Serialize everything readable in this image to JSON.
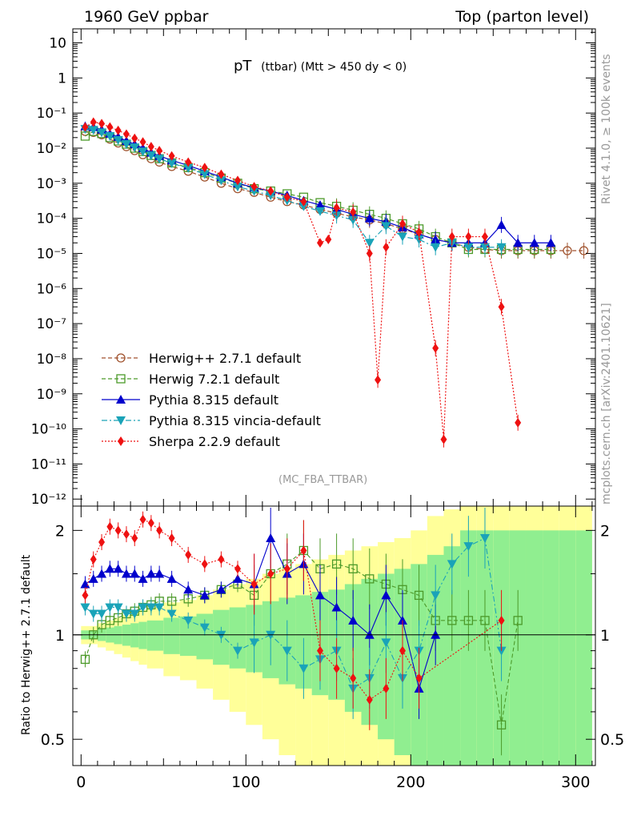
{
  "header": {
    "left": "1960 GeV ppbar",
    "right": "Top (parton level)"
  },
  "side": {
    "rivet": "Rivet 4.1.0, ≥ 100k events",
    "mcplots": "mcplots.cern.ch [arXiv:2401.10621]"
  },
  "analysis_tag": "(MC_FBA_TTBAR)",
  "title": {
    "main": "pT",
    "sub": "(ttbar) (Mtt > 450 dy < 0)"
  },
  "colors": {
    "herwigpp": "#a0522d",
    "herwig7": "#4c9a2a",
    "pythia": "#0000cc",
    "vincia": "#1aa3b8",
    "sherpa": "#ee1111",
    "band_inner": "#90ee90",
    "band_outer": "#ffff99"
  },
  "chart_data": {
    "type": "line",
    "xlabel": "",
    "xlim": [
      -5,
      312
    ],
    "x_ticks": [
      "0",
      "100",
      "200",
      "300"
    ],
    "main": {
      "yscale": "log",
      "ylim_exp": [
        -12.2,
        1.4
      ],
      "y_ticks": [
        "10",
        "1",
        "10⁻¹",
        "10⁻²",
        "10⁻³",
        "10⁻⁴",
        "10⁻⁵",
        "10⁻⁶",
        "10⁻⁷",
        "10⁻⁸",
        "10⁻⁹",
        "10⁻¹⁰",
        "10⁻¹¹",
        "10⁻¹²"
      ]
    },
    "ratio": {
      "ylabel": "Ratio to Herwig++ 2.7.1 default",
      "ylim": [
        0.42,
        2.35
      ],
      "y_ticks": [
        "0.5",
        "1",
        "2"
      ]
    },
    "series": [
      {
        "name": "Herwig++ 2.7.1 default",
        "key": "herwigpp",
        "marker": "circle",
        "x": [
          2.5,
          7.5,
          12.5,
          17.5,
          22.5,
          27.5,
          32.5,
          37.5,
          42.5,
          47.5,
          55,
          65,
          75,
          85,
          95,
          105,
          115,
          125,
          135,
          145,
          155,
          165,
          175,
          185,
          195,
          205,
          215,
          225,
          235,
          245,
          255,
          265,
          275,
          285,
          295,
          305
        ],
        "y": [
          0.03,
          0.028,
          0.024,
          0.018,
          0.014,
          0.011,
          0.0085,
          0.0065,
          0.005,
          0.004,
          0.003,
          0.0022,
          0.0015,
          0.001,
          0.0007,
          0.00055,
          0.0004,
          0.0003,
          0.00024,
          0.00018,
          0.00014,
          0.00011,
          9e-05,
          7e-05,
          5e-05,
          3.5e-05,
          2.5e-05,
          2e-05,
          1.5e-05,
          1.3e-05,
          1.2e-05,
          1.2e-05,
          1.2e-05,
          1.2e-05,
          1.2e-05,
          1.2e-05
        ]
      },
      {
        "name": "Herwig 7.2.1 default",
        "key": "herwig7",
        "marker": "square",
        "x": [
          2.5,
          7.5,
          12.5,
          17.5,
          22.5,
          27.5,
          32.5,
          37.5,
          42.5,
          47.5,
          55,
          65,
          75,
          85,
          95,
          105,
          115,
          125,
          135,
          145,
          155,
          165,
          175,
          185,
          195,
          205,
          215,
          225,
          235,
          245,
          255,
          265,
          275,
          285
        ],
        "y": [
          0.022,
          0.03,
          0.026,
          0.02,
          0.016,
          0.013,
          0.01,
          0.008,
          0.0062,
          0.005,
          0.0038,
          0.0028,
          0.002,
          0.0014,
          0.001,
          0.0007,
          0.0006,
          0.0005,
          0.0004,
          0.00028,
          0.00022,
          0.00017,
          0.00013,
          0.0001,
          7e-05,
          5e-05,
          3e-05,
          2e-05,
          1.3e-05,
          1.3e-05,
          1.3e-05,
          1.3e-05,
          1.3e-05,
          1.3e-05
        ]
      },
      {
        "name": "Pythia 8.315 default",
        "key": "pythia",
        "marker": "triangle-up",
        "x": [
          2.5,
          7.5,
          12.5,
          17.5,
          22.5,
          27.5,
          32.5,
          37.5,
          42.5,
          47.5,
          55,
          65,
          75,
          85,
          95,
          105,
          115,
          125,
          135,
          145,
          155,
          165,
          175,
          185,
          195,
          205,
          215,
          225,
          235,
          245,
          255,
          265,
          275,
          285
        ],
        "y": [
          0.042,
          0.04,
          0.034,
          0.026,
          0.021,
          0.016,
          0.013,
          0.01,
          0.0075,
          0.006,
          0.0045,
          0.0032,
          0.0022,
          0.0015,
          0.001,
          0.00075,
          0.0006,
          0.00045,
          0.00032,
          0.00024,
          0.00018,
          0.00013,
          0.0001,
          8e-05,
          5.5e-05,
          3.5e-05,
          2.5e-05,
          2e-05,
          2e-05,
          2e-05,
          6.5e-05,
          2e-05,
          2e-05,
          2e-05
        ]
      },
      {
        "name": "Pythia 8.315 vincia-default",
        "key": "vincia",
        "marker": "triangle-down",
        "x": [
          2.5,
          7.5,
          12.5,
          17.5,
          22.5,
          27.5,
          32.5,
          37.5,
          42.5,
          47.5,
          55,
          65,
          75,
          85,
          95,
          105,
          115,
          125,
          135,
          145,
          155,
          165,
          175,
          185,
          195,
          205,
          215,
          225,
          235,
          245,
          255
        ],
        "y": [
          0.035,
          0.033,
          0.028,
          0.022,
          0.017,
          0.013,
          0.0105,
          0.008,
          0.0062,
          0.005,
          0.0037,
          0.0027,
          0.0018,
          0.0012,
          0.0008,
          0.0006,
          0.00045,
          0.00032,
          0.00022,
          0.00016,
          0.00012,
          9e-05,
          2e-05,
          6e-05,
          3e-05,
          2.5e-05,
          1.5e-05,
          2e-05,
          1.5e-05,
          1.5e-05,
          1.5e-05
        ]
      },
      {
        "name": "Sherpa 2.2.9 default",
        "key": "sherpa",
        "marker": "diamond",
        "x": [
          2.5,
          7.5,
          12.5,
          17.5,
          22.5,
          27.5,
          32.5,
          37.5,
          42.5,
          47.5,
          55,
          65,
          75,
          85,
          95,
          105,
          115,
          125,
          135,
          145,
          150,
          155,
          165,
          175,
          180,
          185,
          195,
          205,
          215,
          220,
          225,
          235,
          245,
          255,
          265
        ],
        "y": [
          0.04,
          0.055,
          0.05,
          0.04,
          0.032,
          0.025,
          0.019,
          0.015,
          0.011,
          0.0085,
          0.006,
          0.004,
          0.0028,
          0.0018,
          0.0012,
          0.0008,
          0.0006,
          0.0004,
          0.0003,
          2e-05,
          2.5e-05,
          0.0002,
          0.00015,
          1e-05,
          2.5e-09,
          1.5e-05,
          7e-05,
          4e-05,
          2e-08,
          5e-11,
          3e-05,
          3e-05,
          3e-05,
          3e-07,
          1.5e-10
        ]
      }
    ],
    "ratio_series": [
      {
        "key": "herwig7",
        "marker": "square",
        "x": [
          2.5,
          7.5,
          12.5,
          17.5,
          22.5,
          27.5,
          32.5,
          37.5,
          42.5,
          47.5,
          55,
          65,
          75,
          85,
          95,
          105,
          115,
          125,
          135,
          145,
          155,
          165,
          175,
          185,
          195,
          205,
          215,
          225,
          235,
          245,
          255,
          265
        ],
        "y": [
          0.85,
          1.0,
          1.07,
          1.1,
          1.12,
          1.15,
          1.17,
          1.2,
          1.22,
          1.25,
          1.25,
          1.27,
          1.3,
          1.35,
          1.4,
          1.3,
          1.5,
          1.6,
          1.75,
          1.55,
          1.6,
          1.55,
          1.45,
          1.4,
          1.35,
          1.3,
          1.1,
          1.1,
          1.1,
          1.1,
          0.55,
          1.1
        ]
      },
      {
        "key": "pythia",
        "marker": "triangle-up",
        "x": [
          2.5,
          7.5,
          12.5,
          17.5,
          22.5,
          27.5,
          32.5,
          37.5,
          42.5,
          47.5,
          55,
          65,
          75,
          85,
          95,
          105,
          115,
          125,
          135,
          145,
          155,
          165,
          175,
          185,
          195,
          205,
          215
        ],
        "y": [
          1.4,
          1.45,
          1.5,
          1.55,
          1.55,
          1.5,
          1.5,
          1.45,
          1.5,
          1.5,
          1.45,
          1.35,
          1.3,
          1.35,
          1.45,
          1.4,
          1.9,
          1.5,
          1.6,
          1.3,
          1.2,
          1.1,
          1.0,
          1.3,
          1.1,
          0.7,
          1.0
        ]
      },
      {
        "key": "vincia",
        "marker": "triangle-down",
        "x": [
          2.5,
          7.5,
          12.5,
          17.5,
          22.5,
          27.5,
          32.5,
          37.5,
          42.5,
          47.5,
          55,
          65,
          75,
          85,
          95,
          105,
          115,
          125,
          135,
          145,
          155,
          165,
          175,
          185,
          195,
          205,
          215,
          225,
          235,
          245,
          255
        ],
        "y": [
          1.2,
          1.15,
          1.15,
          1.2,
          1.2,
          1.15,
          1.15,
          1.2,
          1.2,
          1.2,
          1.15,
          1.1,
          1.05,
          1.0,
          0.9,
          0.95,
          1.0,
          0.9,
          0.8,
          0.85,
          0.9,
          0.7,
          0.75,
          0.95,
          0.75,
          0.9,
          1.3,
          1.6,
          1.8,
          1.9,
          0.9
        ]
      },
      {
        "key": "sherpa",
        "marker": "diamond",
        "x": [
          2.5,
          7.5,
          12.5,
          17.5,
          22.5,
          27.5,
          32.5,
          37.5,
          42.5,
          47.5,
          55,
          65,
          75,
          85,
          95,
          105,
          115,
          125,
          135,
          145,
          155,
          165,
          175,
          185,
          195,
          205,
          255
        ],
        "y": [
          1.3,
          1.65,
          1.85,
          2.05,
          2.0,
          1.95,
          1.9,
          2.15,
          2.1,
          2.0,
          1.9,
          1.7,
          1.6,
          1.65,
          1.55,
          1.4,
          1.5,
          1.55,
          1.75,
          0.9,
          0.8,
          0.75,
          0.65,
          0.7,
          0.9,
          0.75,
          1.1
        ]
      }
    ],
    "bands": {
      "x": [
        2.5,
        7.5,
        12.5,
        17.5,
        22.5,
        27.5,
        32.5,
        37.5,
        42.5,
        47.5,
        55,
        65,
        75,
        85,
        95,
        105,
        115,
        125,
        135,
        145,
        155,
        165,
        175,
        185,
        195,
        205,
        215,
        225,
        235,
        245,
        255,
        265,
        275,
        285,
        295,
        305
      ],
      "inner": [
        0.03,
        0.03,
        0.04,
        0.05,
        0.06,
        0.07,
        0.08,
        0.09,
        0.1,
        0.1,
        0.12,
        0.13,
        0.15,
        0.18,
        0.2,
        0.22,
        0.25,
        0.28,
        0.3,
        0.33,
        0.35,
        0.4,
        0.45,
        0.5,
        0.55,
        0.6,
        0.7,
        0.8,
        1.0,
        1.0,
        1.0,
        1.0,
        1.0,
        1.0,
        1.0,
        1.0
      ],
      "outer": [
        0.06,
        0.06,
        0.08,
        0.1,
        0.12,
        0.14,
        0.16,
        0.18,
        0.2,
        0.2,
        0.24,
        0.26,
        0.3,
        0.35,
        0.4,
        0.45,
        0.5,
        0.55,
        0.6,
        0.65,
        0.7,
        0.75,
        0.8,
        0.85,
        0.9,
        1.0,
        1.2,
        1.3,
        1.4,
        1.4,
        1.4,
        1.4,
        1.4,
        1.4,
        1.4,
        1.4
      ]
    }
  }
}
